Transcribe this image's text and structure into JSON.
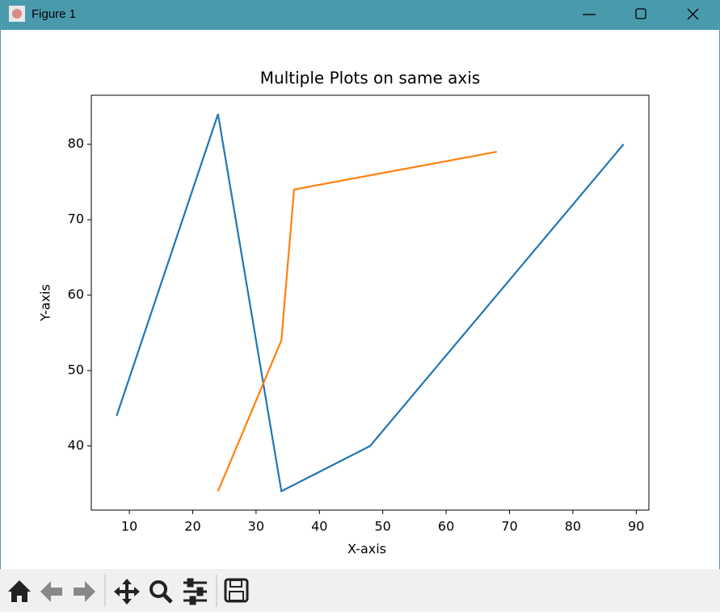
{
  "window": {
    "title": "Figure 1"
  },
  "chart_data": {
    "type": "line",
    "title": "Multiple Plots on same axis",
    "x_label": "X-axis",
    "y_label": "Y-axis",
    "series": [
      {
        "color": "#1f77b4",
        "x": [
          8,
          24,
          34,
          48,
          88
        ],
        "values": [
          44,
          84,
          34,
          40,
          80
        ]
      },
      {
        "color": "#ff7f0e",
        "x": [
          24,
          34,
          36,
          68
        ],
        "values": [
          34,
          54,
          74,
          79
        ]
      }
    ],
    "xlim": [
      4,
      92
    ],
    "ylim": [
      31.5,
      86.5
    ],
    "xticks": [
      10,
      20,
      30,
      40,
      50,
      60,
      70,
      80,
      90
    ],
    "yticks": [
      40,
      50,
      60,
      70,
      80
    ],
    "grid": false
  }
}
